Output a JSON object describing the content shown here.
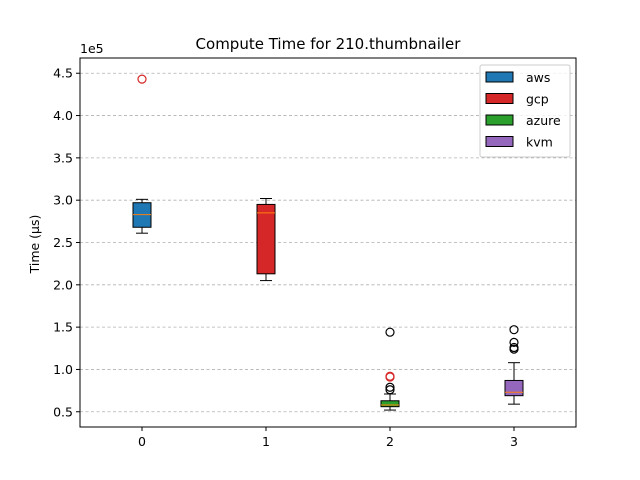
{
  "chart_data": {
    "type": "box",
    "title": "Compute Time for 210.thumbnailer",
    "xlabel": "",
    "ylabel": "Time (µs)",
    "y_multiplier": "1e5",
    "categories": [
      "0",
      "1",
      "2",
      "3"
    ],
    "yticks": [
      "0.5",
      "1.0",
      "1.5",
      "2.0",
      "2.5",
      "3.0",
      "3.5",
      "4.0",
      "4.5"
    ],
    "ylim": [
      32000,
      468000
    ],
    "xlim": [
      -0.5,
      3.5
    ],
    "grid": "y-dashed",
    "legend_position": "top-right",
    "series": [
      {
        "name": "aws",
        "color": "#1f77b4",
        "x": 0,
        "whisker_low": 261000,
        "q1": 268000,
        "median": 283000,
        "q3": 297000,
        "whisker_high": 301000,
        "outliers": [
          443000
        ],
        "outlier_color": "#d62728"
      },
      {
        "name": "gcp",
        "color": "#d62728",
        "x": 1,
        "whisker_low": 205000,
        "q1": 213000,
        "median": 285000,
        "q3": 295000,
        "whisker_high": 302000,
        "outliers": [],
        "outlier_color": "#d62728"
      },
      {
        "name": "azure",
        "color": "#2ca02c",
        "x": 2,
        "whisker_low": 52000,
        "q1": 56000,
        "median": 58000,
        "q3": 63000,
        "whisker_high": 71000,
        "outliers": [
          76000,
          79000,
          91000,
          92000,
          144000
        ],
        "outlier_color": "#000000",
        "outlier_colors": [
          "#000000",
          "#000000",
          "#d62728",
          "#d62728",
          "#000000"
        ]
      },
      {
        "name": "kvm",
        "color": "#9467bd",
        "x": 3,
        "whisker_low": 59000,
        "q1": 69000,
        "median": 73000,
        "q3": 87000,
        "whisker_high": 108000,
        "outliers": [
          124000,
          126000,
          132000,
          147000
        ],
        "outlier_color": "#000000"
      }
    ]
  }
}
